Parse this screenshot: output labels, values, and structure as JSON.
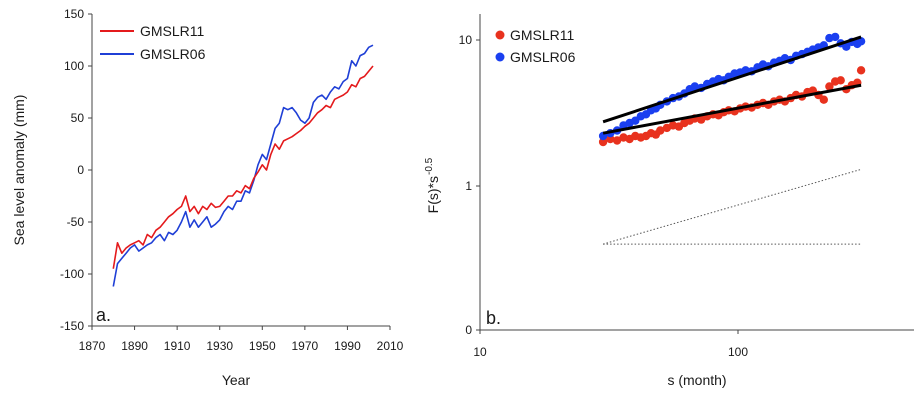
{
  "panels": [
    {
      "panel_label": "a.",
      "xlabel": "Year",
      "ylabel": "Sea level anomaly (mm)",
      "xticks": [
        "1870",
        "1890",
        "1910",
        "1930",
        "1950",
        "1970",
        "1990",
        "2010"
      ],
      "yticks": [
        "150",
        "100",
        "50",
        "0",
        "-50",
        "-100",
        "-150"
      ],
      "legend": [
        "GMSLR11",
        "GMSLR06"
      ]
    },
    {
      "panel_label": "b.",
      "xlabel": "s (month)",
      "ylabel": "F(s)*s",
      "ylabel_exp": "-0.5",
      "xticks": [
        "10",
        "100"
      ],
      "yticks": [
        "10",
        "1",
        "0"
      ],
      "legend": [
        "GMSLR11",
        "GMSLR06"
      ]
    }
  ],
  "chart_data": [
    {
      "type": "line",
      "title": "",
      "xlabel": "Year",
      "ylabel": "Sea level anomaly (mm)",
      "xlim": [
        1870,
        2010
      ],
      "ylim": [
        -150,
        150
      ],
      "grid": false,
      "legend_position": "top-left",
      "panel_label": "a.",
      "series": [
        {
          "name": "GMSLR11",
          "color": "#e41a1c",
          "x": [
            1880,
            1882,
            1884,
            1886,
            1888,
            1890,
            1892,
            1894,
            1896,
            1898,
            1900,
            1902,
            1904,
            1906,
            1908,
            1910,
            1912,
            1914,
            1916,
            1918,
            1920,
            1922,
            1924,
            1926,
            1928,
            1930,
            1932,
            1934,
            1936,
            1938,
            1940,
            1942,
            1944,
            1946,
            1948,
            1950,
            1952,
            1954,
            1956,
            1958,
            1960,
            1962,
            1964,
            1966,
            1968,
            1970,
            1972,
            1974,
            1976,
            1978,
            1980,
            1982,
            1984,
            1986,
            1988,
            1990,
            1992,
            1994,
            1996,
            1998,
            2000,
            2002
          ],
          "y": [
            -95,
            -70,
            -80,
            -75,
            -72,
            -70,
            -68,
            -72,
            -62,
            -65,
            -58,
            -55,
            -50,
            -45,
            -42,
            -38,
            -35,
            -25,
            -40,
            -35,
            -42,
            -35,
            -38,
            -32,
            -36,
            -35,
            -30,
            -25,
            -25,
            -20,
            -22,
            -15,
            -18,
            -8,
            -2,
            5,
            0,
            15,
            25,
            20,
            28,
            30,
            32,
            35,
            38,
            42,
            45,
            50,
            55,
            58,
            62,
            60,
            68,
            70,
            72,
            75,
            82,
            80,
            88,
            90,
            95,
            100
          ]
        },
        {
          "name": "GMSLR06",
          "color": "#1f3fd6",
          "x": [
            1880,
            1882,
            1884,
            1886,
            1888,
            1890,
            1892,
            1894,
            1896,
            1898,
            1900,
            1902,
            1904,
            1906,
            1908,
            1910,
            1912,
            1914,
            1916,
            1918,
            1920,
            1922,
            1924,
            1926,
            1928,
            1930,
            1932,
            1934,
            1936,
            1938,
            1940,
            1942,
            1944,
            1946,
            1948,
            1950,
            1952,
            1954,
            1956,
            1958,
            1960,
            1962,
            1964,
            1966,
            1968,
            1970,
            1972,
            1974,
            1976,
            1978,
            1980,
            1982,
            1984,
            1986,
            1988,
            1990,
            1992,
            1994,
            1996,
            1998,
            2000,
            2002
          ],
          "y": [
            -112,
            -90,
            -85,
            -80,
            -75,
            -72,
            -78,
            -75,
            -72,
            -70,
            -65,
            -62,
            -68,
            -60,
            -62,
            -58,
            -50,
            -40,
            -55,
            -48,
            -55,
            -50,
            -45,
            -55,
            -52,
            -48,
            -40,
            -35,
            -38,
            -30,
            -30,
            -20,
            -22,
            -10,
            5,
            15,
            10,
            25,
            40,
            45,
            60,
            58,
            60,
            55,
            48,
            45,
            50,
            65,
            70,
            72,
            68,
            75,
            80,
            78,
            85,
            88,
            105,
            100,
            110,
            112,
            118,
            120
          ]
        }
      ]
    },
    {
      "type": "scatter",
      "title": "",
      "xlabel": "s (month)",
      "ylabel": "F(s)*s^-0.5",
      "x_scale": "log",
      "y_scale": "log",
      "xlim": [
        10,
        500
      ],
      "grid": false,
      "legend_position": "top-left",
      "panel_label": "b.",
      "series": [
        {
          "name": "GMSLR11",
          "color": "#e8321e",
          "x": [
            30,
            32,
            34,
            36,
            38,
            40,
            42,
            44,
            46,
            48,
            50,
            53,
            56,
            59,
            62,
            65,
            68,
            72,
            76,
            80,
            84,
            88,
            92,
            97,
            102,
            107,
            113,
            119,
            125,
            131,
            138,
            145,
            152,
            160,
            168,
            177,
            186,
            195,
            205,
            215,
            226,
            238,
            250,
            263,
            276,
            290,
            300
          ],
          "y": [
            2.0,
            2.1,
            2.05,
            2.15,
            2.1,
            2.2,
            2.15,
            2.2,
            2.3,
            2.25,
            2.4,
            2.5,
            2.6,
            2.55,
            2.7,
            2.8,
            2.9,
            2.85,
            3.0,
            3.1,
            3.05,
            3.2,
            3.3,
            3.25,
            3.4,
            3.5,
            3.45,
            3.6,
            3.7,
            3.6,
            3.8,
            3.9,
            3.8,
            4.0,
            4.2,
            4.1,
            4.4,
            4.5,
            4.2,
            3.9,
            4.8,
            5.2,
            5.3,
            4.6,
            4.9,
            5.1,
            6.2
          ]
        },
        {
          "name": "GMSLR06",
          "color": "#1a3ff0",
          "x": [
            30,
            32,
            34,
            36,
            38,
            40,
            42,
            44,
            46,
            48,
            50,
            53,
            56,
            59,
            62,
            65,
            68,
            72,
            76,
            80,
            84,
            88,
            92,
            97,
            102,
            107,
            113,
            119,
            125,
            131,
            138,
            145,
            152,
            160,
            168,
            177,
            186,
            195,
            205,
            215,
            226,
            238,
            250,
            263,
            276,
            290,
            300
          ],
          "y": [
            2.2,
            2.3,
            2.4,
            2.6,
            2.7,
            2.8,
            3.0,
            3.1,
            3.3,
            3.4,
            3.6,
            3.8,
            4.0,
            4.1,
            4.3,
            4.6,
            4.8,
            4.7,
            5.0,
            5.2,
            5.4,
            5.3,
            5.6,
            5.9,
            6.0,
            6.2,
            6.1,
            6.5,
            6.8,
            6.6,
            7.0,
            7.2,
            7.5,
            7.3,
            7.8,
            8.0,
            8.3,
            8.6,
            8.9,
            9.2,
            10.3,
            10.5,
            9.5,
            9.0,
            9.7,
            9.4,
            9.8
          ]
        },
        {
          "name": "",
          "color": "#000000",
          "x": [
            30,
            300
          ],
          "y": [
            2.75,
            10.5
          ]
        },
        {
          "name": "",
          "color": "#000000",
          "x": [
            30,
            300
          ],
          "y": [
            2.3,
            4.9
          ]
        },
        {
          "name": "",
          "color": "#555555",
          "x": [
            30,
            300
          ],
          "y": [
            0.4,
            1.3
          ]
        },
        {
          "name": "",
          "color": "#555555",
          "x": [
            30,
            300
          ],
          "y": [
            0.4,
            0.4
          ]
        }
      ]
    }
  ]
}
